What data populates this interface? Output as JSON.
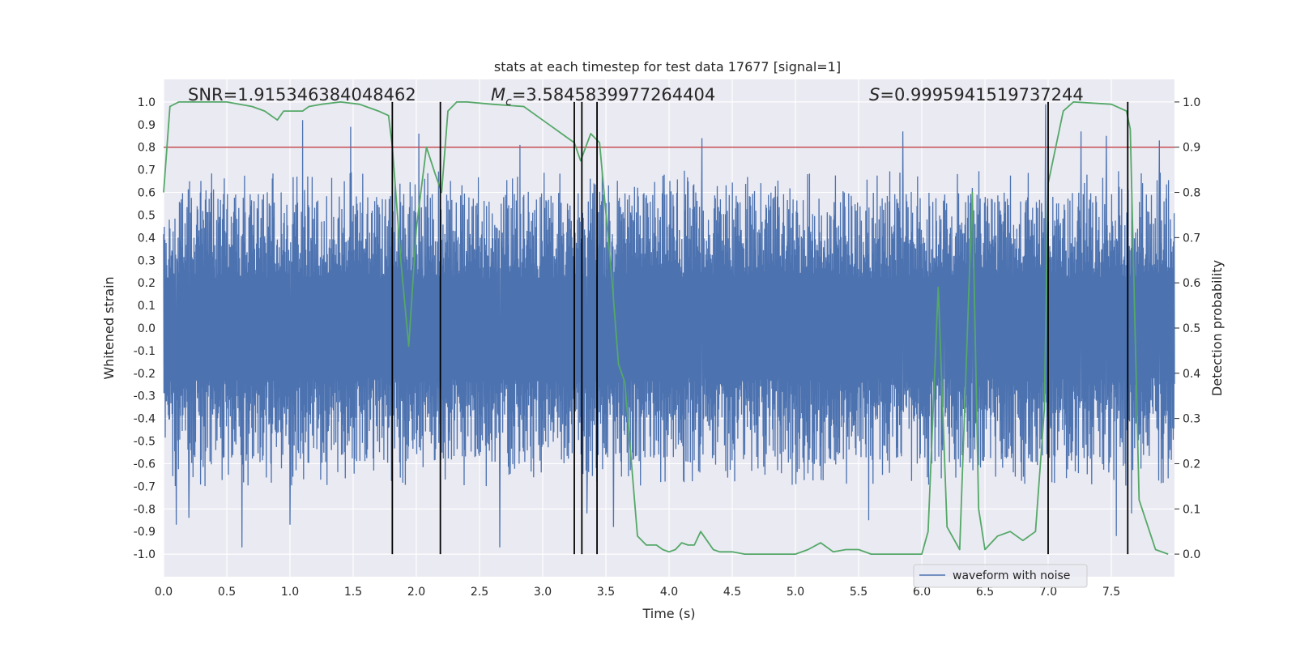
{
  "chart_data": {
    "type": "line",
    "title": "stats at each timestep for test data 17677 [signal=1]",
    "xlabel": "Time (s)",
    "ylabel": "Whitened strain",
    "y2label": "Detection probability",
    "xlim": [
      0.0,
      8.0
    ],
    "ylim": [
      -1.1,
      1.1
    ],
    "y2lim": [
      -0.05,
      1.05
    ],
    "xticks": [
      "0.0",
      "0.5",
      "1.0",
      "1.5",
      "2.0",
      "2.5",
      "3.0",
      "3.5",
      "4.0",
      "4.5",
      "5.0",
      "5.5",
      "6.0",
      "6.5",
      "7.0",
      "7.5"
    ],
    "yticks": [
      "1.0",
      "0.9",
      "0.8",
      "0.7",
      "0.6",
      "0.5",
      "0.4",
      "0.3",
      "0.2",
      "0.1",
      "0.0",
      "-0.1",
      "-0.2",
      "-0.3",
      "-0.4",
      "-0.5",
      "-0.6",
      "-0.7",
      "-0.8",
      "-0.9",
      "-1.0"
    ],
    "y2ticks": [
      "1.0",
      "0.9",
      "0.8",
      "0.7",
      "0.6",
      "0.5",
      "0.4",
      "0.3",
      "0.2",
      "0.1",
      "0.0"
    ],
    "stats": {
      "snr": "SNR=1.915346384048462",
      "mc_symbol": "M",
      "mc_sub": "c",
      "mc_value": "=3.5845839977264404",
      "s_symbol": "S",
      "s_value": "=0.9995941519737244"
    },
    "threshold": 0.8,
    "waveform_series": {
      "name": "waveform with noise",
      "color": "#4c72b0",
      "typical_envelope": 0.4,
      "peaks": [
        {
          "t": 0.62,
          "v": 0.85
        },
        {
          "t": 1.1,
          "v": 0.92
        },
        {
          "t": 1.48,
          "v": 0.89
        },
        {
          "t": 2.02,
          "v": 0.86
        },
        {
          "t": 2.82,
          "v": 0.81
        },
        {
          "t": 4.26,
          "v": 0.84
        },
        {
          "t": 5.85,
          "v": 0.87
        },
        {
          "t": 6.18,
          "v": 0.55
        },
        {
          "t": 6.4,
          "v": 0.62
        },
        {
          "t": 6.98,
          "v": 0.99
        },
        {
          "t": 7.26,
          "v": 0.87
        },
        {
          "t": 7.46,
          "v": 0.85
        },
        {
          "t": 7.88,
          "v": 0.83
        },
        {
          "t": 0.1,
          "v": -0.87
        },
        {
          "t": 0.2,
          "v": -0.84
        },
        {
          "t": 0.62,
          "v": -0.97
        },
        {
          "t": 1.0,
          "v": -0.87
        },
        {
          "t": 2.66,
          "v": -0.97
        },
        {
          "t": 3.35,
          "v": -0.82
        },
        {
          "t": 3.56,
          "v": -0.88
        },
        {
          "t": 5.58,
          "v": -0.85
        },
        {
          "t": 7.54,
          "v": -0.92
        },
        {
          "t": 7.66,
          "v": -0.82
        }
      ]
    },
    "probability_series": {
      "name": "detection probability",
      "color": "#55a868",
      "x": [
        0.0,
        0.05,
        0.12,
        0.3,
        0.5,
        0.7,
        0.8,
        0.9,
        0.95,
        1.0,
        1.1,
        1.15,
        1.25,
        1.4,
        1.55,
        1.6,
        1.7,
        1.78,
        1.81,
        1.88,
        1.94,
        2.0,
        2.08,
        2.15,
        2.2,
        2.25,
        2.32,
        2.4,
        2.6,
        2.85,
        2.95,
        3.05,
        3.15,
        3.2,
        3.25,
        3.3,
        3.38,
        3.45,
        3.55,
        3.6,
        3.65,
        3.75,
        3.82,
        3.9,
        3.95,
        4.0,
        4.05,
        4.1,
        4.15,
        4.2,
        4.25,
        4.3,
        4.35,
        4.4,
        4.5,
        4.6,
        4.7,
        5.0,
        5.1,
        5.2,
        5.3,
        5.4,
        5.5,
        5.6,
        5.8,
        6.0,
        6.05,
        6.13,
        6.2,
        6.3,
        6.4,
        6.45,
        6.5,
        6.6,
        6.7,
        6.8,
        6.9,
        6.97,
        7.0,
        7.12,
        7.2,
        7.5,
        7.62,
        7.65,
        7.72,
        7.85,
        7.95
      ],
      "y": [
        0.8,
        0.99,
        1.0,
        1.0,
        1.0,
        0.99,
        0.98,
        0.96,
        0.98,
        0.98,
        0.98,
        0.99,
        0.995,
        1.0,
        0.995,
        0.99,
        0.98,
        0.97,
        0.9,
        0.64,
        0.46,
        0.72,
        0.9,
        0.84,
        0.8,
        0.98,
        1.0,
        1.0,
        0.995,
        0.99,
        0.97,
        0.95,
        0.93,
        0.92,
        0.91,
        0.87,
        0.93,
        0.91,
        0.6,
        0.42,
        0.38,
        0.04,
        0.02,
        0.02,
        0.01,
        0.005,
        0.01,
        0.025,
        0.02,
        0.02,
        0.05,
        0.03,
        0.01,
        0.005,
        0.005,
        0.0,
        0.0,
        0.0,
        0.01,
        0.025,
        0.005,
        0.01,
        0.01,
        0.0,
        0.0,
        0.0,
        0.05,
        0.59,
        0.06,
        0.01,
        0.8,
        0.1,
        0.01,
        0.04,
        0.05,
        0.03,
        0.05,
        0.32,
        0.82,
        0.98,
        1.0,
        0.995,
        0.98,
        0.94,
        0.12,
        0.01,
        0.0
      ]
    },
    "vertical_lines_x": [
      1.81,
      2.19,
      3.25,
      3.31,
      3.43,
      7.0,
      7.63
    ],
    "legend": {
      "placement": "lower-right",
      "label": "waveform with noise"
    }
  }
}
